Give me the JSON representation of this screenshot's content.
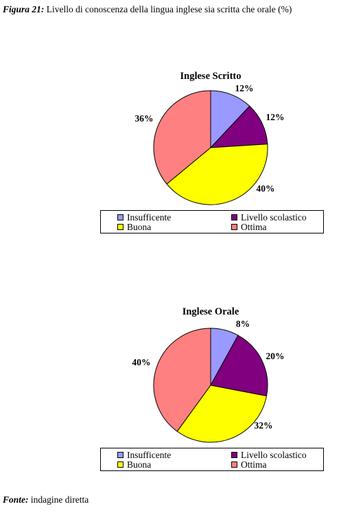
{
  "figure": {
    "label": "Figura 21:",
    "text": " Livello di conoscenza della lingua inglese sia scritta che orale (%)"
  },
  "source": {
    "label": "Fonte:",
    "text": " indagine diretta"
  },
  "colors": {
    "Insufficente": "#9999ff",
    "Livello scolastico": "#800080",
    "Buona": "#ffff00",
    "Ottima": "#ff8080"
  },
  "chart_data": [
    {
      "type": "pie",
      "title": "Inglese Scritto",
      "categories": [
        "Insufficente",
        "Livello scolastico",
        "Buona",
        "Ottima"
      ],
      "values": [
        12,
        12,
        40,
        36
      ],
      "labels": [
        "12%",
        "12%",
        "40%",
        "36%"
      ],
      "legend": "bottom"
    },
    {
      "type": "pie",
      "title": "Inglese Orale",
      "categories": [
        "Insufficente",
        "Livello scolastico",
        "Buona",
        "Ottima"
      ],
      "values": [
        8,
        20,
        32,
        40
      ],
      "labels": [
        "8%",
        "20%",
        "32%",
        "40%"
      ],
      "legend": "bottom"
    }
  ]
}
